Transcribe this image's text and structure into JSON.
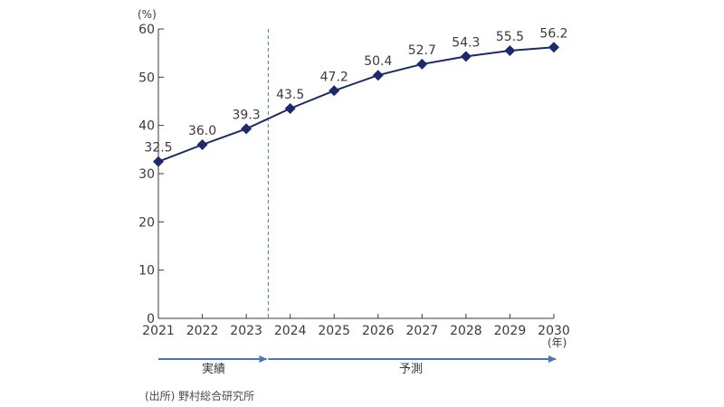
{
  "chart_data": {
    "type": "line",
    "y_unit": "(%)",
    "x_unit": "(年)",
    "x": [
      "2021",
      "2022",
      "2023",
      "2024",
      "2025",
      "2026",
      "2027",
      "2028",
      "2029",
      "2030"
    ],
    "series": [
      {
        "values": [
          32.5,
          36.0,
          39.3,
          43.5,
          47.2,
          50.4,
          52.7,
          54.3,
          55.5,
          56.2
        ],
        "labels": [
          "32.5",
          "36.0",
          "39.3",
          "43.5",
          "47.2",
          "50.4",
          "52.7",
          "54.3",
          "55.5",
          "56.2"
        ]
      }
    ],
    "ylim": [
      0,
      60
    ],
    "yticks": [
      "0",
      "10",
      "20",
      "30",
      "40",
      "50",
      "60"
    ],
    "grid": false,
    "split_after": "2023",
    "periods": {
      "actual": "実績",
      "forecast": "予測"
    },
    "source": "(出所) 野村総合研究所",
    "colors": {
      "line": "#1b2a6b",
      "marker": "#1b2a6b",
      "axis": "#3a3a3a",
      "arrow": "#4f73b8",
      "divider": "#4f73b8"
    }
  }
}
